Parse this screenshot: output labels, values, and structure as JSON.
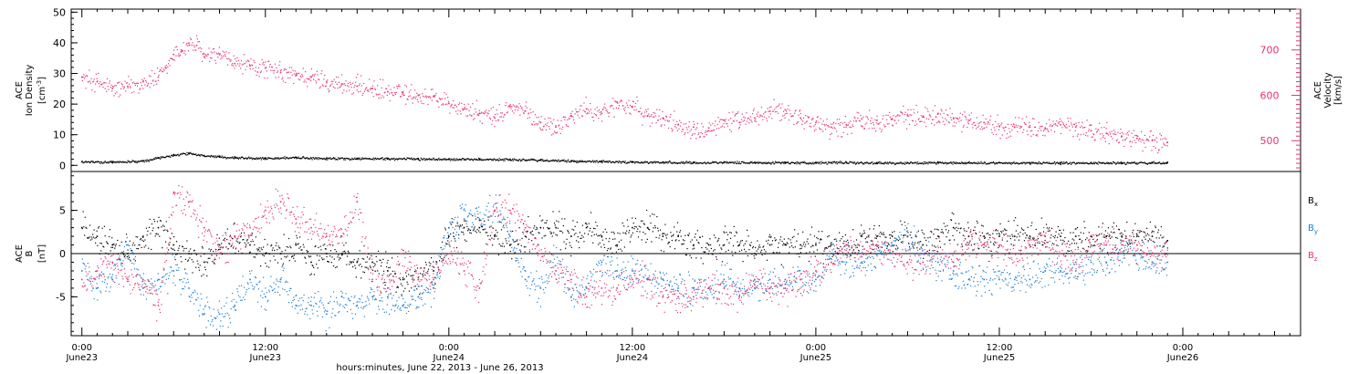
{
  "chart_data": [
    {
      "type": "scatter",
      "panel": "ace-plasma",
      "y_left": {
        "label_lines": [
          "ACE",
          "Ion Density"
        ],
        "unit": "[cm",
        "unit_sup": "-3",
        "unit_close": "]",
        "ylim": [
          -2,
          51
        ],
        "ticks": [
          "0",
          "10",
          "20",
          "30",
          "40",
          "50"
        ],
        "tick_values": [
          0,
          10,
          20,
          30,
          40,
          50
        ]
      },
      "y_right": {
        "label_lines": [
          "ACE",
          "Velocity",
          "[km/s]"
        ],
        "ylim": [
          432,
          790
        ],
        "ticks": [
          "500",
          "600",
          "700"
        ],
        "tick_values": [
          500,
          600,
          700
        ]
      },
      "series": [
        {
          "name": "Velocity",
          "axis": "right",
          "color": "#e8336d",
          "x_hours": [
            0,
            1,
            2,
            3,
            4,
            5,
            5.5,
            6,
            6.5,
            7,
            7.5,
            8,
            9,
            10,
            11,
            12,
            13,
            14,
            15,
            16,
            17,
            18,
            19,
            20,
            21,
            22,
            23,
            24,
            25,
            26,
            27,
            28,
            29,
            30,
            31,
            32,
            33,
            34,
            35,
            36,
            37,
            38,
            39,
            40,
            41,
            42,
            43,
            44,
            45,
            46,
            47,
            48,
            49,
            50,
            51,
            52,
            53,
            54,
            55,
            56,
            57,
            58,
            59,
            60,
            61,
            62,
            63,
            64,
            65,
            66,
            67,
            68,
            69,
            70,
            71
          ],
          "y": [
            640,
            630,
            615,
            620,
            630,
            640,
            660,
            690,
            700,
            715,
            710,
            685,
            690,
            670,
            665,
            660,
            650,
            645,
            640,
            630,
            625,
            620,
            615,
            608,
            605,
            600,
            598,
            582,
            570,
            560,
            550,
            575,
            565,
            540,
            530,
            555,
            570,
            560,
            585,
            575,
            555,
            550,
            535,
            530,
            528,
            545,
            540,
            550,
            565,
            568,
            550,
            540,
            530,
            535,
            548,
            545,
            548,
            555,
            552,
            560,
            550,
            545,
            540,
            532,
            530,
            530,
            528,
            535,
            530,
            522,
            516,
            510,
            505,
            500,
            496
          ]
        },
        {
          "name": "Ion Density",
          "axis": "left",
          "color": "#000000",
          "x_hours": [
            0,
            2,
            4,
            5,
            6,
            7,
            8,
            9,
            10,
            12,
            14,
            16,
            18,
            20,
            22,
            24,
            26,
            28,
            30,
            32,
            34,
            36,
            38,
            40,
            42,
            44,
            46,
            48,
            50,
            52,
            54,
            56,
            58,
            60,
            62,
            64,
            66,
            68,
            70,
            71
          ],
          "y": [
            1.2,
            1.2,
            1.5,
            2.5,
            3.5,
            4,
            3.2,
            3,
            2.6,
            2.4,
            2.6,
            2.4,
            2.3,
            2.3,
            2.2,
            2.1,
            2.1,
            2.0,
            1.8,
            1.5,
            1.4,
            1.2,
            1.1,
            1.0,
            1.1,
            1.0,
            1.0,
            1.0,
            1.0,
            0.9,
            0.9,
            0.9,
            0.9,
            0.9,
            0.9,
            0.9,
            0.9,
            0.9,
            0.9,
            0.9
          ]
        }
      ]
    },
    {
      "type": "scatter",
      "panel": "ace-imf",
      "y_left": {
        "label_lines": [
          "ACE",
          "B"
        ],
        "unit": "[nT]",
        "ylim": [
          -9.5,
          9.5
        ],
        "ticks": [
          "5",
          "0",
          "-5"
        ],
        "tick_values": [
          5,
          0,
          -5
        ]
      },
      "zero_line": true,
      "series": [
        {
          "name": "B",
          "sub": "x",
          "color": "#000000",
          "x_hours": [
            0,
            1,
            2,
            3,
            4,
            5,
            6,
            7,
            8,
            9,
            10,
            11,
            12,
            13,
            14,
            15,
            16,
            17,
            18,
            19,
            20,
            21,
            22,
            23,
            24,
            25,
            26,
            27,
            28,
            29,
            30,
            31,
            32,
            33,
            34,
            35,
            36,
            37,
            38,
            39,
            40,
            41,
            42,
            43,
            44,
            45,
            46,
            47,
            48,
            49,
            50,
            51,
            52,
            53,
            54,
            55,
            56,
            57,
            58,
            59,
            60,
            61,
            62,
            63,
            64,
            65,
            66,
            67,
            68,
            69,
            70,
            71
          ],
          "y": [
            3,
            2,
            1,
            0,
            2,
            3,
            1,
            0,
            -1,
            1,
            2,
            1,
            0,
            0,
            1,
            -1,
            0,
            0,
            -1,
            -1,
            -2,
            -3,
            -3,
            -2,
            2,
            3,
            3,
            2,
            1,
            2,
            3,
            3,
            2,
            3,
            2,
            1,
            3,
            3,
            2,
            2,
            1,
            1,
            1,
            1,
            0,
            1,
            1,
            1,
            1,
            1,
            1,
            2,
            2,
            2,
            2,
            1,
            2,
            3,
            2,
            2,
            2,
            2,
            2,
            2,
            2,
            2,
            2,
            2,
            2,
            2,
            2,
            1.5
          ]
        },
        {
          "name": "B",
          "sub": "y",
          "color": "#1a7ed6",
          "x_hours": [
            0,
            1,
            2,
            3,
            4,
            5,
            6,
            7,
            8,
            9,
            10,
            11,
            12,
            13,
            14,
            15,
            16,
            17,
            18,
            19,
            20,
            21,
            22,
            23,
            24,
            25,
            26,
            27,
            28,
            29,
            30,
            31,
            32,
            33,
            34,
            35,
            36,
            37,
            38,
            39,
            40,
            41,
            42,
            43,
            44,
            45,
            46,
            47,
            48,
            49,
            50,
            51,
            52,
            53,
            54,
            55,
            56,
            57,
            58,
            59,
            60,
            61,
            62,
            63,
            64,
            65,
            66,
            67,
            68,
            69,
            70,
            71
          ],
          "y": [
            -2,
            -4,
            -3,
            1,
            -4,
            -3,
            -2,
            -4,
            -7,
            -7,
            -6,
            -3,
            -5,
            -3,
            -6,
            -6,
            -7,
            -5,
            -6,
            -5,
            -5,
            -6,
            -5,
            -4,
            3,
            4,
            4,
            5,
            2,
            -3,
            -4,
            0,
            -5,
            -4,
            -1,
            -2,
            -2,
            -3,
            -3,
            -4,
            -4,
            -4,
            -3,
            -4,
            -4,
            -3,
            -3,
            -3,
            -3,
            0,
            -1,
            -1,
            0,
            1,
            2,
            0,
            -1,
            -2,
            -3,
            -3,
            -3,
            -3,
            -3,
            -2,
            -2,
            -2,
            -1,
            -1,
            0,
            0,
            -1,
            -1
          ]
        },
        {
          "name": "B",
          "sub": "z",
          "color": "#e8336d",
          "x_hours": [
            0,
            1,
            2,
            3,
            4,
            5,
            6,
            7,
            8,
            9,
            10,
            11,
            12,
            13,
            14,
            15,
            16,
            17,
            18,
            19,
            20,
            21,
            22,
            23,
            24,
            25,
            26,
            27,
            28,
            29,
            30,
            31,
            32,
            33,
            34,
            35,
            36,
            37,
            38,
            39,
            40,
            41,
            42,
            43,
            44,
            45,
            46,
            47,
            48,
            49,
            50,
            51,
            52,
            53,
            54,
            55,
            56,
            57,
            58,
            59,
            60,
            61,
            62,
            63,
            64,
            65,
            66,
            67,
            68,
            69,
            70,
            71
          ],
          "y": [
            -3,
            -2,
            -1,
            -3,
            -3,
            -6,
            7,
            6,
            3,
            0,
            2,
            3,
            5,
            6,
            4,
            3,
            2,
            2,
            6,
            -3,
            -4,
            0,
            -3,
            -3,
            0,
            -2,
            -4,
            5,
            5,
            3,
            0,
            -2,
            -3,
            -5,
            -4,
            -4,
            -3,
            -3,
            -5,
            -5,
            -5,
            -4,
            -4,
            -5,
            -3,
            -4,
            -4,
            -3,
            -2,
            -1,
            1,
            0,
            1,
            0,
            -1,
            -1,
            0,
            -1,
            1,
            1,
            1,
            0,
            1,
            2,
            0,
            -1,
            1,
            1,
            1,
            1,
            0,
            0
          ]
        }
      ]
    }
  ],
  "x_axis": {
    "ticks": [
      {
        "time": "0:00",
        "date": "June23"
      },
      {
        "time": "12:00",
        "date": "June23"
      },
      {
        "time": "0:00",
        "date": "June24"
      },
      {
        "time": "12:00",
        "date": "June24"
      },
      {
        "time": "0:00",
        "date": "June25"
      },
      {
        "time": "12:00",
        "date": "June25"
      },
      {
        "time": "0:00",
        "date": "June26"
      }
    ],
    "tick_hours": [
      0,
      12,
      24,
      36,
      48,
      60,
      72
    ],
    "xlim": [
      -0.7,
      79.7
    ],
    "title": "hours:minutes, June 22, 2013 - June 26, 2013"
  }
}
